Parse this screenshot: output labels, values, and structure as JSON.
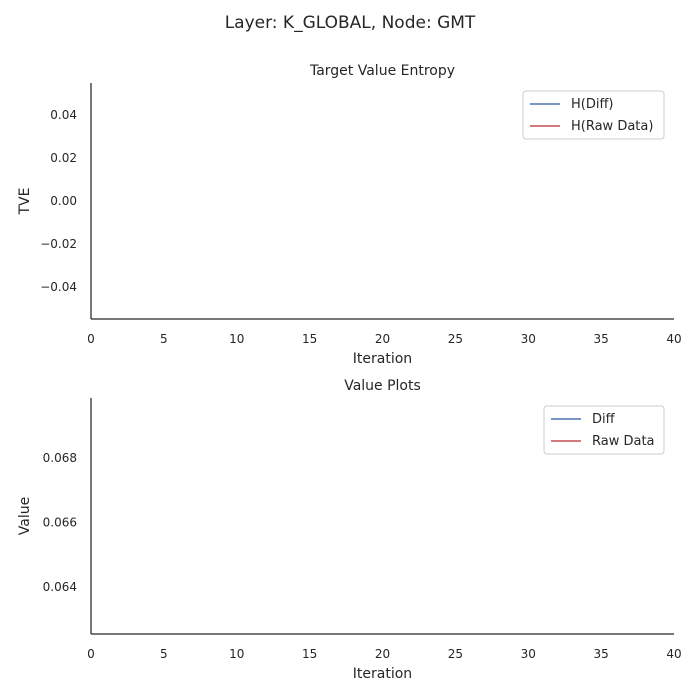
{
  "figure": {
    "suptitle": "Layer: K_GLOBAL, Node: GMT"
  },
  "chart_data": [
    {
      "type": "line",
      "title": "Target Value Entropy",
      "xlabel": "Iteration",
      "ylabel": "TVE",
      "xlim": [
        0,
        40
      ],
      "ylim": [
        -0.055,
        0.055
      ],
      "xticks": [
        0,
        5,
        10,
        15,
        20,
        25,
        30,
        35,
        40
      ],
      "yticks": [
        -0.04,
        -0.02,
        0.0,
        0.02,
        0.04
      ],
      "ytick_labels": [
        "−0.04",
        "−0.02",
        "0.00",
        "0.02",
        "0.04"
      ],
      "legend_position": "top-right",
      "grid": false,
      "series": [
        {
          "name": "H(Diff)",
          "color": "#4c72b0",
          "x": [],
          "y": []
        },
        {
          "name": "H(Raw Data)",
          "color": "#c44e52",
          "x": [],
          "y": []
        }
      ]
    },
    {
      "type": "line",
      "title": "Value Plots",
      "xlabel": "Iteration",
      "ylabel": "Value",
      "xlim": [
        0,
        40
      ],
      "ylim": [
        0.06255,
        0.06985
      ],
      "xticks": [
        0,
        5,
        10,
        15,
        20,
        25,
        30,
        35,
        40
      ],
      "yticks": [
        0.064,
        0.066,
        0.068
      ],
      "ytick_labels": [
        "0.064",
        "0.066",
        "0.068"
      ],
      "legend_position": "top-right",
      "grid": false,
      "series": [
        {
          "name": "Diff",
          "color": "#4c72b0",
          "x": [],
          "y": []
        },
        {
          "name": "Raw Data",
          "color": "#c44e52",
          "x": [],
          "y": []
        }
      ]
    }
  ]
}
